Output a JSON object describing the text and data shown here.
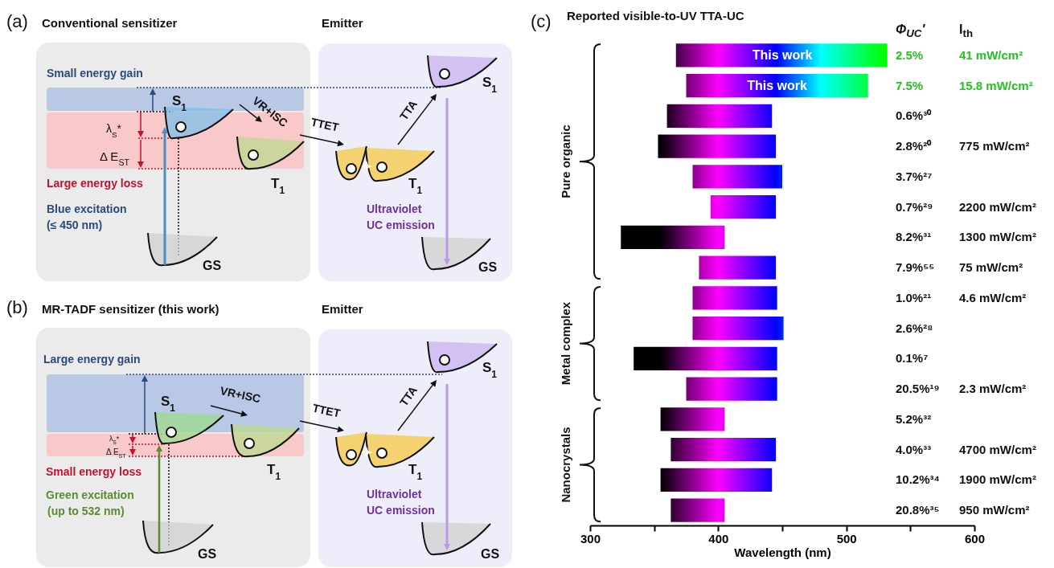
{
  "chart_data": [
    {
      "type": "other",
      "title": "Conventional sensitizer",
      "annotations": [
        "(a)",
        "Emitter",
        "Small energy gain",
        "S$_{1}$",
        "VR+ISC",
        "TTET",
        "TTA",
        "S$_{1}$",
        "λ$_{S}$*",
        "Δ E$_{ST}$",
        "T$_{1}$",
        "T$_{1}$",
        "Large energy loss",
        "Blue excitation",
        "(≤ 450 nm)",
        "Ultraviolet",
        "UC emission",
        "GS",
        "GS"
      ]
    },
    {
      "type": "other",
      "title": "MR-TADF sensitizer (this work)",
      "annotations": [
        "(b)",
        "Emitter",
        "Large energy gain",
        "S$_{1}$",
        "VR+ISC",
        "TTET",
        "TTA",
        "S$_{1}$",
        "λ$_{S}$*",
        "Δ E$_{ST}$",
        "T$_{1}$",
        "T$_{1}$",
        "Small energy loss",
        "Green excitation",
        "(up to 532 nm)",
        "Ultraviolet",
        "UC emission",
        "GS",
        "GS"
      ]
    },
    {
      "type": "bar",
      "orientation": "horizontal",
      "title": "Reported visible-to-UV TTA-UC",
      "xlabel": "Wavelength (nm)",
      "ylabel": "Φ$_{UC}$′",
      "categories": [
        "2.5%",
        "7.5%",
        "0.6%³⁰",
        "2.8%²⁰",
        "3.7%²⁷",
        "0.7%²⁹",
        "8.2%³¹",
        "7.9%⁵⁵",
        "1.0%²¹",
        "2.6%²⁸",
        "0.1%⁷",
        "20.5%¹⁹",
        "5.2%³²",
        "4.0%³³",
        "10.2%³⁴",
        "20.8%³⁵"
      ],
      "base": [
        367,
        375,
        360,
        353,
        380,
        394,
        324,
        385,
        380,
        380,
        334,
        375,
        355,
        363,
        355,
        363
      ],
      "values": [
        165,
        142,
        82,
        92,
        70,
        51,
        81,
        60,
        66,
        71,
        112,
        71,
        50,
        82,
        87,
        42
      ],
      "xlim": [
        300,
        600
      ],
      "xticks": [
        300,
        {
          "value": 350,
          "label": null
        },
        400,
        {
          "value": 450,
          "label": null
        },
        500,
        {
          "value": 550,
          "label": null
        },
        600
      ],
      "annotations": [
        "(c)",
        "Pure organic",
        "Metal complex",
        "Nanocrystals",
        "I$_{th}$",
        {
          "text": "This work",
          "x": 450,
          "y": "2.5%"
        },
        {
          "text": "This work",
          "x": 446,
          "y": "7.5%"
        },
        "41 mW/cm²",
        "15.8 mW/cm²",
        "775 mW/cm²",
        "2200 mW/cm²",
        "1300 mW/cm²",
        "75 mW/cm²",
        "4.6 mW/cm²",
        "2.3 mW/cm²",
        "4700 mW/cm²",
        "1900 mW/cm²",
        "950 mW/cm²"
      ]
    }
  ]
}
